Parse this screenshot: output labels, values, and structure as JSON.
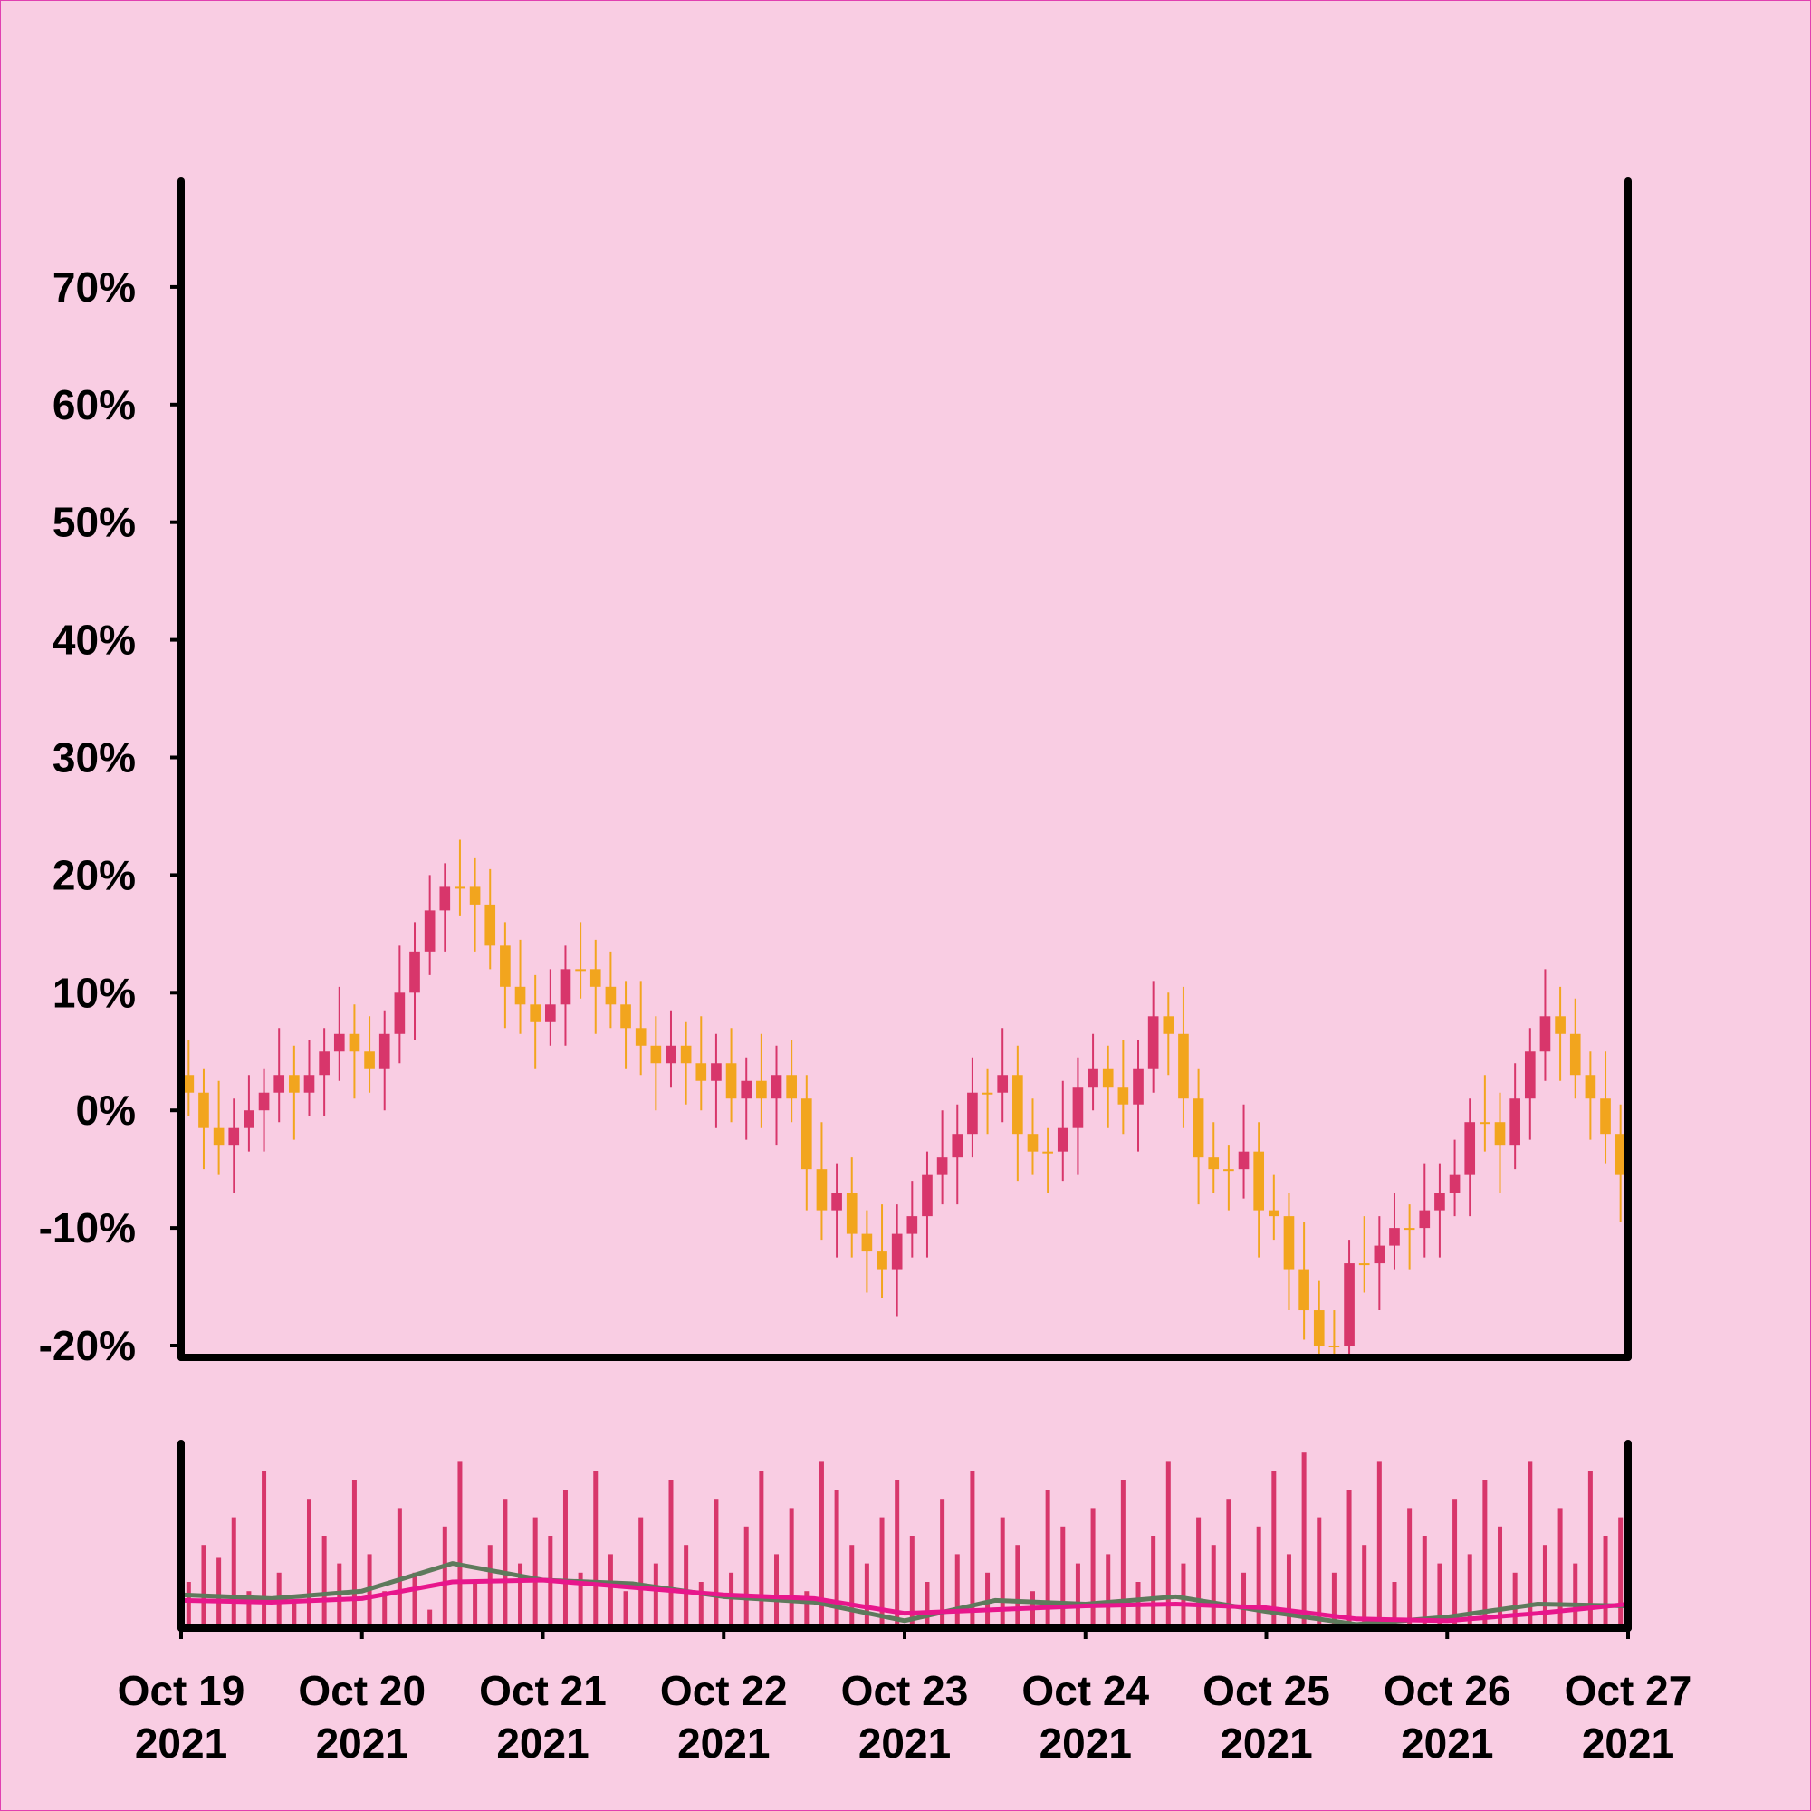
{
  "chart_data": {
    "type": "candlestick",
    "x": [
      "2021-10-19 01:00",
      "2021-10-19 03:00",
      "2021-10-19 05:00",
      "2021-10-19 07:00",
      "2021-10-19 09:00",
      "2021-10-19 11:00",
      "2021-10-19 13:00",
      "2021-10-19 15:00",
      "2021-10-19 17:00",
      "2021-10-19 19:00",
      "2021-10-19 21:00",
      "2021-10-19 23:00",
      "2021-10-20 01:00",
      "2021-10-20 03:00",
      "2021-10-20 05:00",
      "2021-10-20 07:00",
      "2021-10-20 09:00",
      "2021-10-20 11:00",
      "2021-10-20 13:00",
      "2021-10-20 15:00",
      "2021-10-20 17:00",
      "2021-10-20 19:00",
      "2021-10-20 21:00",
      "2021-10-20 23:00",
      "2021-10-21 01:00",
      "2021-10-21 03:00",
      "2021-10-21 05:00",
      "2021-10-21 07:00",
      "2021-10-21 09:00",
      "2021-10-21 11:00",
      "2021-10-21 13:00",
      "2021-10-21 15:00",
      "2021-10-21 17:00",
      "2021-10-21 19:00",
      "2021-10-21 21:00",
      "2021-10-21 23:00",
      "2021-10-22 01:00",
      "2021-10-22 03:00",
      "2021-10-22 05:00",
      "2021-10-22 07:00",
      "2021-10-22 09:00",
      "2021-10-22 11:00",
      "2021-10-22 13:00",
      "2021-10-22 15:00",
      "2021-10-22 17:00",
      "2021-10-22 19:00",
      "2021-10-22 21:00",
      "2021-10-22 23:00",
      "2021-10-23 01:00",
      "2021-10-23 03:00",
      "2021-10-23 05:00",
      "2021-10-23 07:00",
      "2021-10-23 09:00",
      "2021-10-23 11:00",
      "2021-10-23 13:00",
      "2021-10-23 15:00",
      "2021-10-23 17:00",
      "2021-10-23 19:00",
      "2021-10-23 21:00",
      "2021-10-23 23:00",
      "2021-10-24 01:00",
      "2021-10-24 03:00",
      "2021-10-24 05:00",
      "2021-10-24 07:00",
      "2021-10-24 09:00",
      "2021-10-24 11:00",
      "2021-10-24 13:00",
      "2021-10-24 15:00",
      "2021-10-24 17:00",
      "2021-10-24 19:00",
      "2021-10-24 21:00",
      "2021-10-24 23:00",
      "2021-10-25 01:00",
      "2021-10-25 03:00",
      "2021-10-25 05:00",
      "2021-10-25 07:00",
      "2021-10-25 09:00",
      "2021-10-25 11:00",
      "2021-10-25 13:00",
      "2021-10-25 15:00",
      "2021-10-25 17:00",
      "2021-10-25 19:00",
      "2021-10-25 21:00",
      "2021-10-25 23:00",
      "2021-10-26 01:00",
      "2021-10-26 03:00",
      "2021-10-26 05:00",
      "2021-10-26 07:00",
      "2021-10-26 09:00",
      "2021-10-26 11:00",
      "2021-10-26 13:00",
      "2021-10-26 15:00",
      "2021-10-26 17:00",
      "2021-10-26 19:00",
      "2021-10-26 21:00",
      "2021-10-26 23:00"
    ],
    "open": [
      3,
      1.5,
      -1.5,
      -3,
      -1.5,
      0,
      1.5,
      3,
      1.5,
      3,
      5,
      6.5,
      5,
      3.5,
      6.5,
      10,
      13.5,
      17,
      19,
      19,
      17.5,
      14,
      10.5,
      9,
      7.5,
      9,
      12,
      12,
      10.5,
      9,
      7,
      5.5,
      4,
      5.5,
      4,
      2.5,
      4,
      1,
      2.5,
      1,
      3,
      1,
      -5,
      -8.5,
      -7,
      -10.5,
      -12,
      -13.5,
      -10.5,
      -9,
      -5.5,
      -4,
      -2,
      1.5,
      1.5,
      3,
      -2,
      -3.5,
      -3.5,
      -1.5,
      2,
      3.5,
      2,
      0.5,
      3.5,
      8,
      6.5,
      1,
      -4,
      -5,
      -5,
      -3.5,
      -8.5,
      -9,
      -13.5,
      -17,
      -20,
      -20,
      -13,
      -13,
      -11.5,
      -10,
      -10,
      -8.5,
      -7,
      -5.5,
      -1,
      -1,
      -3,
      1,
      5,
      8,
      6.5,
      3,
      1,
      -2
    ],
    "high": [
      6,
      3.5,
      2.5,
      1,
      3,
      3.5,
      7,
      5.5,
      6,
      7,
      10.5,
      9,
      8,
      8.5,
      14,
      16,
      20,
      21,
      23,
      21.5,
      20.5,
      16,
      14.5,
      11.5,
      12,
      14,
      16,
      14.5,
      13.5,
      11,
      11,
      8,
      8.5,
      7.5,
      8,
      6.5,
      7,
      4.5,
      6.5,
      5.5,
      6,
      3,
      -1,
      -4.5,
      -4,
      -8.5,
      -8,
      -8,
      -6,
      -3.5,
      0,
      0.5,
      4.5,
      3.5,
      7,
      5.5,
      1,
      -1.5,
      2.5,
      4.5,
      6.5,
      5.5,
      6,
      6,
      11,
      10,
      10.5,
      3.5,
      -1,
      -3,
      0.5,
      -1,
      -5.5,
      -7,
      -9.5,
      -14.5,
      -17,
      -11,
      -9,
      -9,
      -7,
      -8,
      -4.5,
      -4.5,
      -2.5,
      1,
      3,
      1.5,
      4,
      7,
      12,
      10.5,
      9.5,
      5,
      5,
      0.5
    ],
    "low": [
      -0.5,
      -5,
      -5.5,
      -7,
      -3.5,
      -3.5,
      -1,
      -2.5,
      -0.5,
      -0.5,
      2.5,
      1,
      1.5,
      0,
      4,
      6,
      11.5,
      13.5,
      16.5,
      13.5,
      12,
      7,
      6.5,
      3.5,
      5.5,
      5.5,
      9.5,
      6.5,
      7,
      3.5,
      3,
      0,
      2,
      0.5,
      0,
      -1.5,
      -1,
      -2.5,
      -1.5,
      -3,
      -1,
      -8.5,
      -11,
      -12.5,
      -12.5,
      -15.5,
      -16,
      -17.5,
      -12.5,
      -12.5,
      -8,
      -8,
      -4,
      -2,
      -1,
      -6,
      -5.5,
      -7,
      -6,
      -5.5,
      0,
      -1.5,
      -2,
      -3.5,
      1.5,
      3,
      -1.5,
      -8,
      -7,
      -8.5,
      -7.5,
      -12.5,
      -11,
      -17,
      -19.5,
      -21,
      -21,
      -21,
      -15.5,
      -17,
      -13.5,
      -13.5,
      -12.5,
      -12.5,
      -9,
      -9,
      -3.5,
      -7,
      -5,
      -2.5,
      2.5,
      2.5,
      1,
      -2.5,
      -4.5,
      -9.5
    ],
    "close": [
      1.5,
      -1.5,
      -3,
      -1.5,
      0,
      1.5,
      3,
      1.5,
      3,
      5,
      6.5,
      5,
      3.5,
      6.5,
      10,
      13.5,
      17,
      19,
      19,
      17.5,
      14,
      10.5,
      9,
      7.5,
      9,
      12,
      12,
      10.5,
      9,
      7,
      5.5,
      4,
      5.5,
      4,
      2.5,
      4,
      1,
      2.5,
      1,
      3,
      1,
      -5,
      -8.5,
      -7,
      -10.5,
      -12,
      -13.5,
      -10.5,
      -9,
      -5.5,
      -4,
      -2,
      1.5,
      1.5,
      3,
      -2,
      -3.5,
      -3.5,
      -1.5,
      2,
      3.5,
      2,
      0.5,
      3.5,
      8,
      6.5,
      1,
      -4,
      -5,
      -5,
      -3.5,
      -8.5,
      -9,
      -13.5,
      -17,
      -20,
      -20,
      -13,
      -13,
      -11.5,
      -10,
      -10,
      -8.5,
      -7,
      -5.5,
      -1,
      -1,
      -3,
      1,
      5,
      8,
      6.5,
      3,
      1,
      -2,
      -5.5
    ],
    "up_color": "#d8366b",
    "down_color": "#f2a51e",
    "xlim": [
      "2021-10-19 00:00",
      "2021-10-27 00:00"
    ],
    "xticks": [
      {
        "value": "2021-10-19 00:00",
        "label": "Oct 19\n2021"
      },
      {
        "value": "2021-10-20 00:00",
        "label": "Oct 20\n2021"
      },
      {
        "value": "2021-10-21 00:00",
        "label": "Oct 21\n2021"
      },
      {
        "value": "2021-10-22 00:00",
        "label": "Oct 22\n2021"
      },
      {
        "value": "2021-10-23 00:00",
        "label": "Oct 23\n2021"
      },
      {
        "value": "2021-10-24 00:00",
        "label": "Oct 24\n2021"
      },
      {
        "value": "2021-10-25 00:00",
        "label": "Oct 25\n2021"
      },
      {
        "value": "2021-10-26 00:00",
        "label": "Oct 26\n2021"
      },
      {
        "value": "2021-10-27 00:00",
        "label": "Oct 27\n2021"
      }
    ],
    "ylim": [
      -21,
      79
    ],
    "yticks": [
      {
        "value": -20,
        "label": "-20%"
      },
      {
        "value": -10,
        "label": "-10%"
      },
      {
        "value": 0,
        "label": "0%"
      },
      {
        "value": 10,
        "label": "10%"
      },
      {
        "value": 20,
        "label": "20%"
      },
      {
        "value": 30,
        "label": "30%"
      },
      {
        "value": 40,
        "label": "40%"
      },
      {
        "value": 50,
        "label": "50%"
      },
      {
        "value": 60,
        "label": "60%"
      },
      {
        "value": 70,
        "label": "70%"
      }
    ],
    "volume": [
      25,
      45,
      38,
      60,
      20,
      85,
      30,
      15,
      70,
      50,
      35,
      80,
      40,
      20,
      65,
      30,
      10,
      55,
      90,
      25,
      45,
      70,
      35,
      60,
      50,
      75,
      30,
      85,
      40,
      20,
      60,
      35,
      80,
      45,
      25,
      70,
      30,
      55,
      85,
      40,
      65,
      20,
      90,
      75,
      45,
      35,
      60,
      80,
      50,
      25,
      70,
      40,
      85,
      30,
      60,
      45,
      20,
      75,
      55,
      35,
      65,
      40,
      80,
      25,
      50,
      90,
      35,
      60,
      45,
      70,
      30,
      55,
      85,
      40,
      95,
      60,
      30,
      75,
      45,
      90,
      25,
      65,
      50,
      35,
      70,
      40,
      80,
      55,
      30,
      90,
      45,
      65,
      35,
      85,
      50,
      60
    ],
    "volume_color": "#d8366b",
    "volume_ylim": [
      0,
      100
    ],
    "moving_averages": {
      "x": [
        "2021-10-19 00:00",
        "2021-10-19 12:00",
        "2021-10-20 00:00",
        "2021-10-20 12:00",
        "2021-10-21 00:00",
        "2021-10-21 12:00",
        "2021-10-22 00:00",
        "2021-10-22 12:00",
        "2021-10-23 00:00",
        "2021-10-23 12:00",
        "2021-10-24 00:00",
        "2021-10-24 12:00",
        "2021-10-25 00:00",
        "2021-10-25 12:00",
        "2021-10-26 00:00",
        "2021-10-26 12:00",
        "2021-10-27 00:00"
      ],
      "series": [
        {
          "color": "#5e7a5c",
          "values": [
            18,
            16,
            20,
            35,
            26,
            24,
            17,
            14,
            4,
            15,
            13,
            17,
            9,
            2,
            6,
            13,
            12
          ]
        },
        {
          "color": "#e8168c",
          "values": [
            15,
            14,
            16,
            25,
            26,
            22,
            18,
            16,
            8,
            10,
            12,
            13,
            11,
            5,
            4,
            8,
            13
          ]
        }
      ]
    }
  }
}
